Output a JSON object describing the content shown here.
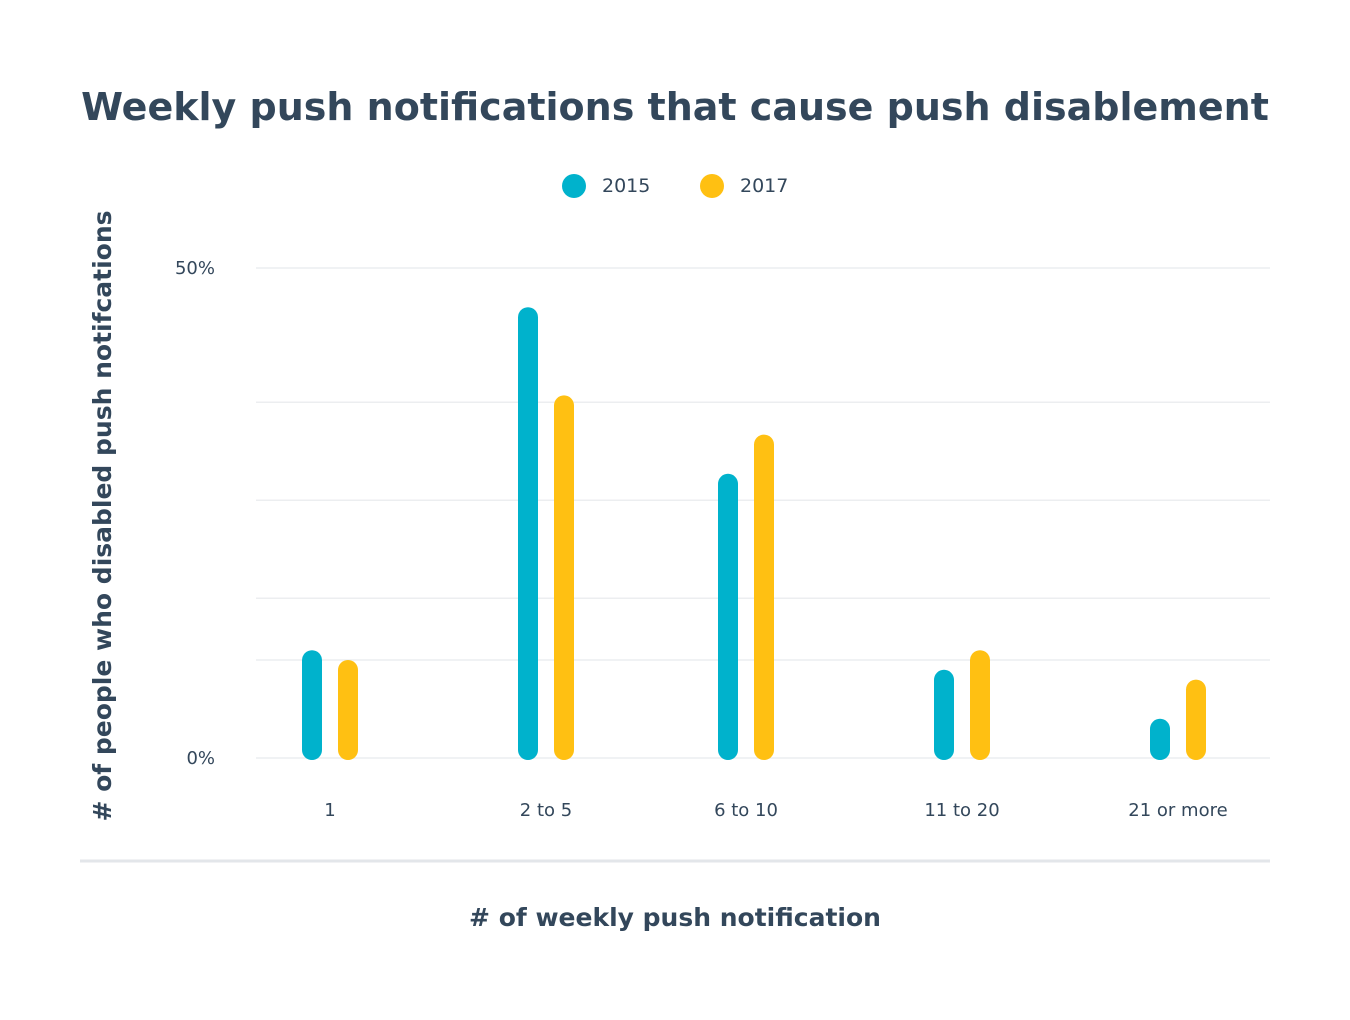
{
  "chart_data": {
    "type": "bar",
    "title": "Weekly push notifications that cause push disablement",
    "xlabel": "# of weekly push notification",
    "ylabel": "# of people who disabled push notifcations",
    "categories": [
      "1",
      "2 to 5",
      "6 to 10",
      "11 to 20",
      "21 or more"
    ],
    "series": [
      {
        "name": "2015",
        "color": "#00b2cc",
        "values": [
          11,
          46,
          29,
          9,
          4
        ]
      },
      {
        "name": "2017",
        "color": "#ffc012",
        "values": [
          10,
          37,
          33,
          11,
          8
        ]
      }
    ],
    "ylim": [
      0,
      50
    ],
    "yticks": [
      {
        "value": 0,
        "label": "0%"
      },
      {
        "value": 50,
        "label": "50%"
      }
    ],
    "gridlines": [
      0,
      10,
      16.3,
      26.3,
      36.3,
      50
    ],
    "grid": true,
    "legend": "top-center"
  }
}
